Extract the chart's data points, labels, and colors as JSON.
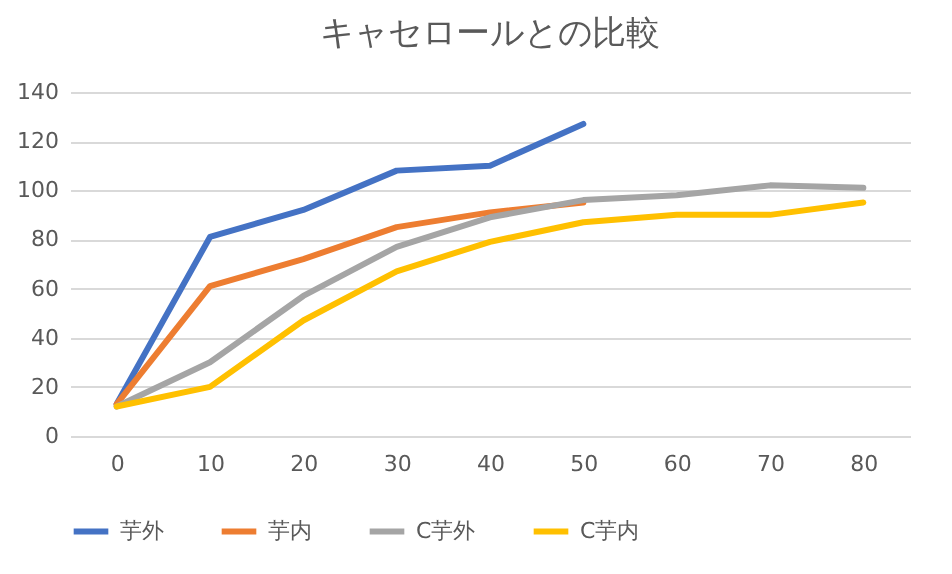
{
  "chart_data": {
    "type": "line",
    "title": "キャセロールとの比較",
    "categories": [
      "0",
      "10",
      "20",
      "30",
      "40",
      "50",
      "60",
      "70",
      "80"
    ],
    "ylim": [
      0,
      140
    ],
    "yticks": [
      0,
      20,
      40,
      60,
      80,
      100,
      120,
      140
    ],
    "grid": "y",
    "legend": "bottom",
    "line_style": "solid",
    "marker": "none",
    "series": [
      {
        "name": "芋外",
        "color": "#4472c4",
        "values": [
          13,
          81,
          92,
          108,
          110,
          127,
          null,
          null,
          null
        ]
      },
      {
        "name": "芋内",
        "color": "#ed7d31",
        "values": [
          13,
          61,
          72,
          85,
          91,
          95,
          null,
          null,
          null
        ]
      },
      {
        "name": "C芋外",
        "color": "#a5a5a5",
        "values": [
          12,
          30,
          57,
          77,
          89,
          96,
          98,
          102,
          101
        ]
      },
      {
        "name": "C芋内",
        "color": "#ffc000",
        "values": [
          12,
          20,
          47,
          67,
          79,
          87,
          90,
          90,
          95
        ]
      }
    ]
  }
}
